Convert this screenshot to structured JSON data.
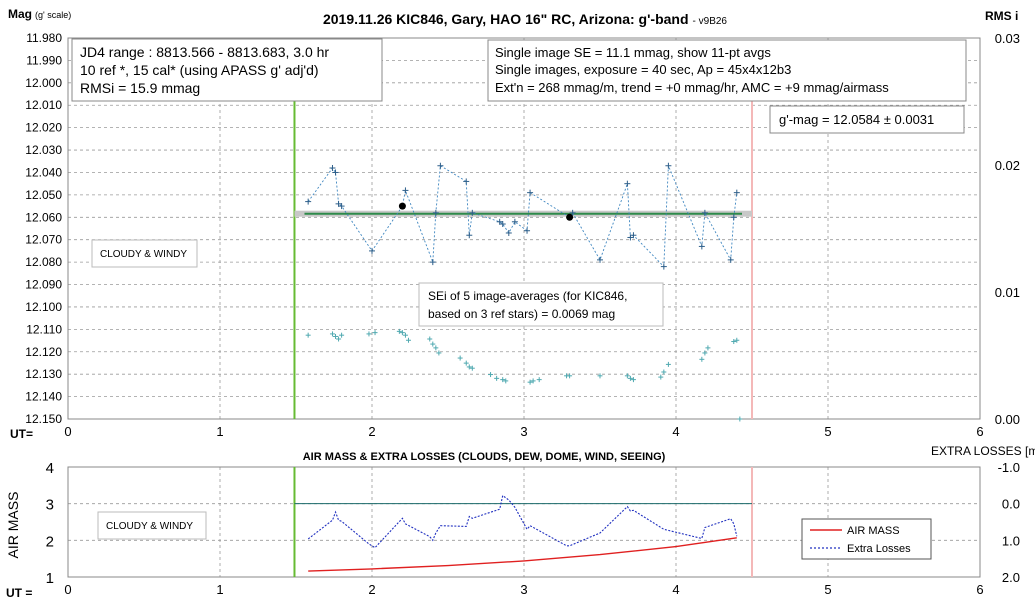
{
  "chart_data": [
    {
      "type": "scatter",
      "title": "2019.11.26 KIC846, Gary, HAO 16\" RC, Arizona: g'-band",
      "version_tag": "- v9B26",
      "ylabel_left": "Mag",
      "ylabel_left_sub": "(g' scale)",
      "ylabel_right": "RMS i",
      "xlabel": "UT=",
      "xlim": [
        0,
        6
      ],
      "ylim_left": [
        11.98,
        12.15
      ],
      "ylim_left_reversed": true,
      "ylim_right": [
        0,
        0.03
      ],
      "x_ticks": [
        "0",
        "1",
        "2",
        "3",
        "4",
        "5",
        "6"
      ],
      "y_ticks_left": [
        "11.980",
        "11.990",
        "12.000",
        "12.010",
        "12.020",
        "12.030",
        "12.040",
        "12.050",
        "12.060",
        "12.070",
        "12.080",
        "12.090",
        "12.100",
        "12.110",
        "12.120",
        "12.130",
        "12.140",
        "12.150"
      ],
      "y_ticks_right": [
        "0.03",
        "0.02",
        "0.01",
        "0.00"
      ],
      "grid": true,
      "vlines": [
        {
          "x": 1.49,
          "color": "#66bb33"
        },
        {
          "x": 4.5,
          "color": "#f4b8b8"
        }
      ],
      "series": [
        {
          "kind": "magnitudes",
          "x": [
            1.58,
            1.74,
            1.76,
            1.78,
            1.8,
            2.0,
            2.2,
            2.22,
            2.4,
            2.42,
            2.45,
            2.62,
            2.64,
            2.66,
            2.84,
            2.86,
            2.9,
            2.94,
            3.02,
            3.04,
            3.3,
            3.32,
            3.5,
            3.68,
            3.7,
            3.72,
            3.92,
            3.95,
            4.17,
            4.19,
            4.36,
            4.38,
            4.4
          ],
          "y": [
            12.053,
            12.038,
            12.04,
            12.054,
            12.055,
            12.075,
            12.055,
            12.048,
            12.08,
            12.058,
            12.037,
            12.044,
            12.068,
            12.058,
            12.062,
            12.063,
            12.067,
            12.062,
            12.066,
            12.049,
            12.06,
            12.058,
            12.079,
            12.045,
            12.069,
            12.068,
            12.082,
            12.037,
            12.073,
            12.058,
            12.079,
            12.06,
            12.049
          ]
        },
        {
          "kind": "rms",
          "x": [
            1.58,
            1.74,
            1.76,
            1.78,
            1.8,
            1.98,
            2.02,
            2.18,
            2.2,
            2.22,
            2.24,
            2.38,
            2.4,
            2.42,
            2.44,
            2.58,
            2.62,
            2.64,
            2.66,
            2.78,
            2.82,
            2.86,
            2.88,
            3.04,
            3.06,
            3.1,
            3.28,
            3.3,
            3.5,
            3.68,
            3.7,
            3.72,
            3.9,
            3.92,
            3.95,
            4.17,
            4.19,
            4.21,
            4.38,
            4.4,
            4.42
          ],
          "y": [
            0.0066,
            0.0067,
            0.0065,
            0.0063,
            0.0066,
            0.0067,
            0.0068,
            0.0069,
            0.0068,
            0.0066,
            0.0062,
            0.0063,
            0.0059,
            0.0056,
            0.0052,
            0.0048,
            0.0044,
            0.0041,
            0.004,
            0.0035,
            0.0032,
            0.0031,
            0.003,
            0.0029,
            0.003,
            0.0031,
            0.0034,
            0.0034,
            0.0034,
            0.0034,
            0.0032,
            0.0031,
            0.0033,
            0.0037,
            0.0043,
            0.0047,
            0.0052,
            0.0056,
            0.0061,
            0.0062,
            0.0
          ]
        },
        {
          "kind": "averages",
          "x": [
            2.2,
            3.3
          ],
          "y": [
            12.055,
            12.06
          ]
        },
        {
          "kind": "mean",
          "x": [
            1.49,
            4.5
          ],
          "y": [
            12.0584,
            12.0584
          ]
        }
      ],
      "boxes": {
        "info_left": [
          "JD4 range : 8813.566 - 8813.683,  3.0  hr",
          "10 ref *, 15 cal* (using APASS g' adj'd)",
          "RMSi = 15.9 mmag"
        ],
        "info_right": [
          "Single image SE = 11.1 mmag, show  11-pt avgs",
          "Single images, exposure = 40 sec, Ap = 45x4x12b3",
          "Ext'n = 268 mmag/m, trend =  +0 mmag/hr, AMC = +9 mmag/airmass"
        ],
        "gmag": "g'-mag = 12.0584 ± 0.0031",
        "cloudy": "CLOUDY & WINDY",
        "sei": [
          "SEi of 5 image-averages (for KIC846,",
          "based on 3 ref stars) = 0.0069 mag"
        ]
      }
    },
    {
      "type": "line",
      "title": "AIR MASS & EXTRA LOSSES (CLOUDS, DEW, DOME, WIND, SEEING)",
      "ylabel_left": "AIR MASS",
      "ylabel_right": "EXTRA LOSSES [mag]",
      "xlabel": "UT =",
      "xlim": [
        0,
        6
      ],
      "ylim_left": [
        1,
        4
      ],
      "ylim_right": [
        -1.0,
        2.0
      ],
      "ylim_right_reversed": true,
      "x_ticks": [
        "0",
        "1",
        "2",
        "3",
        "4",
        "5",
        "6"
      ],
      "y_ticks_left": [
        "1",
        "2",
        "3",
        "4"
      ],
      "y_ticks_right": [
        "-1.0",
        "0.0",
        "1.0",
        "2.0"
      ],
      "grid": true,
      "reference_line": {
        "y": 3,
        "color": "#1a6a6a"
      },
      "vlines": [
        {
          "x": 1.49,
          "color": "#66bb33"
        },
        {
          "x": 4.5,
          "color": "#f4b8b8"
        }
      ],
      "series": [
        {
          "name": "AIR MASS",
          "color": "#e02020",
          "style": "solid",
          "x": [
            1.58,
            2.0,
            2.5,
            3.0,
            3.5,
            4.0,
            4.4
          ],
          "y": [
            1.16,
            1.22,
            1.31,
            1.44,
            1.61,
            1.83,
            2.07
          ]
        },
        {
          "name": "Extra Losses",
          "color": "#2030c0",
          "style": "dotted",
          "axis": "right",
          "x": [
            1.58,
            1.74,
            1.76,
            1.78,
            1.8,
            1.98,
            2.02,
            2.2,
            2.22,
            2.38,
            2.4,
            2.42,
            2.45,
            2.62,
            2.64,
            2.66,
            2.84,
            2.86,
            2.9,
            2.94,
            3.02,
            3.04,
            3.28,
            3.3,
            3.5,
            3.68,
            3.7,
            3.72,
            3.92,
            3.95,
            4.17,
            4.19,
            4.36,
            4.38,
            4.4
          ],
          "y": [
            0.96,
            0.45,
            0.23,
            0.45,
            0.48,
            1.1,
            1.2,
            0.4,
            0.55,
            0.9,
            1.0,
            0.8,
            0.6,
            0.62,
            0.35,
            0.4,
            0.15,
            -0.22,
            -0.1,
            0.1,
            0.7,
            0.6,
            1.15,
            1.15,
            0.8,
            0.08,
            0.2,
            0.18,
            0.7,
            0.73,
            0.95,
            0.65,
            0.41,
            0.55,
            0.89
          ]
        }
      ],
      "boxes": {
        "cloudy": "CLOUDY & WINDY"
      }
    }
  ]
}
